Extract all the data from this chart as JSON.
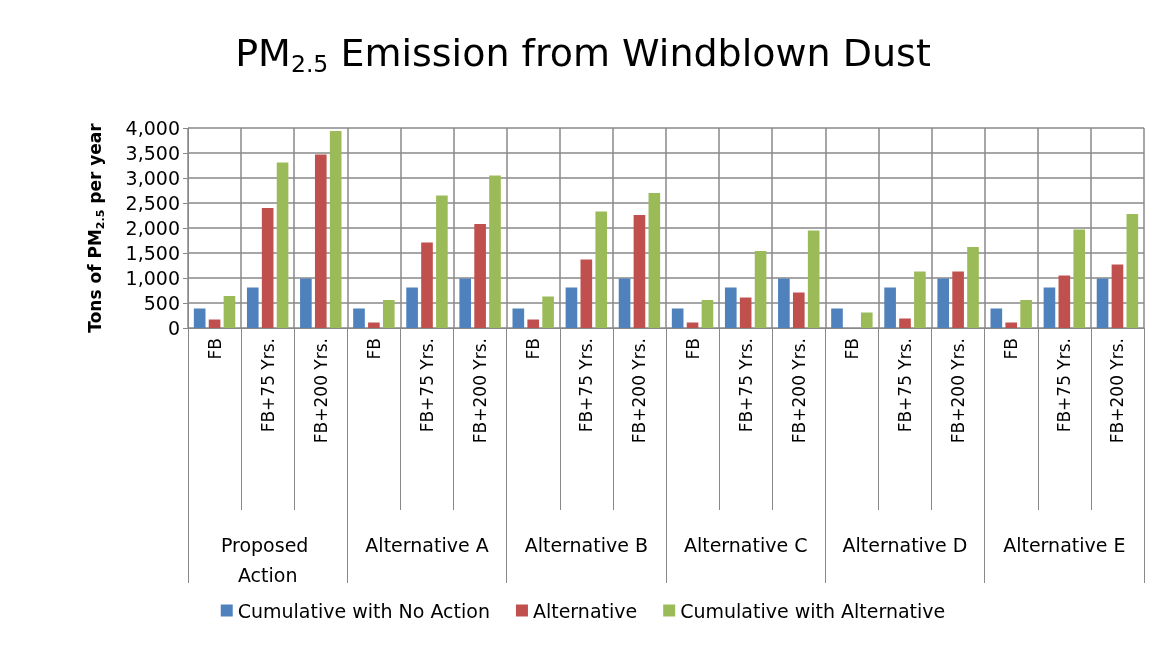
{
  "chart_data": {
    "type": "bar",
    "title": "PM$_{2.5}$ Emission from Windblown Dust",
    "ylabel": "Tons of PM$_{2.5}$ per year",
    "categories": [
      "FB",
      "FB+75 Yrs.",
      "FB+200 Yrs.",
      "FB",
      "FB+75 Yrs.",
      "FB+200 Yrs.",
      "FB",
      "FB+75 Yrs.",
      "FB+200 Yrs.",
      "FB",
      "FB+75 Yrs.",
      "FB+200 Yrs.",
      "FB",
      "FB+75 Yrs.",
      "FB+200 Yrs.",
      "FB",
      "FB+75 Yrs.",
      "FB+200 Yrs."
    ],
    "annotations": [
      "Proposed Action",
      "Alternative A",
      "Alternative B",
      "Alternative C",
      "Alternative D",
      "Alternative E"
    ],
    "series": [
      {
        "name": "Cumulative with No Action",
        "color": "#4f81bd",
        "values": [
          390,
          810,
          990,
          390,
          810,
          990,
          390,
          810,
          990,
          390,
          810,
          990,
          390,
          810,
          990,
          390,
          810,
          990
        ]
      },
      {
        "name": "Alternative",
        "color": "#c0504d",
        "values": [
          170,
          2400,
          3470,
          110,
          1710,
          2080,
          170,
          1370,
          2260,
          110,
          610,
          710,
          0,
          190,
          1130,
          110,
          1050,
          1270
        ]
      },
      {
        "name": "Cumulative with Alternative",
        "color": "#9bbb59",
        "values": [
          640,
          3310,
          3940,
          560,
          2650,
          3050,
          630,
          2330,
          2700,
          560,
          1540,
          1950,
          310,
          1130,
          1620,
          560,
          1970,
          2280
        ]
      }
    ],
    "ylim": [
      0,
      4000
    ],
    "yticks": [
      0,
      500,
      {
        "value": 1000,
        "label": "1,000"
      },
      {
        "value": 1500,
        "label": "1,500"
      },
      {
        "value": 2000,
        "label": "2,000"
      },
      {
        "value": 2500,
        "label": "2,500"
      },
      {
        "value": 3000,
        "label": "3,000"
      },
      {
        "value": 3500,
        "label": "3,500"
      },
      {
        "value": 4000,
        "label": "4,000"
      }
    ],
    "grid": true,
    "legend": "bottom"
  }
}
